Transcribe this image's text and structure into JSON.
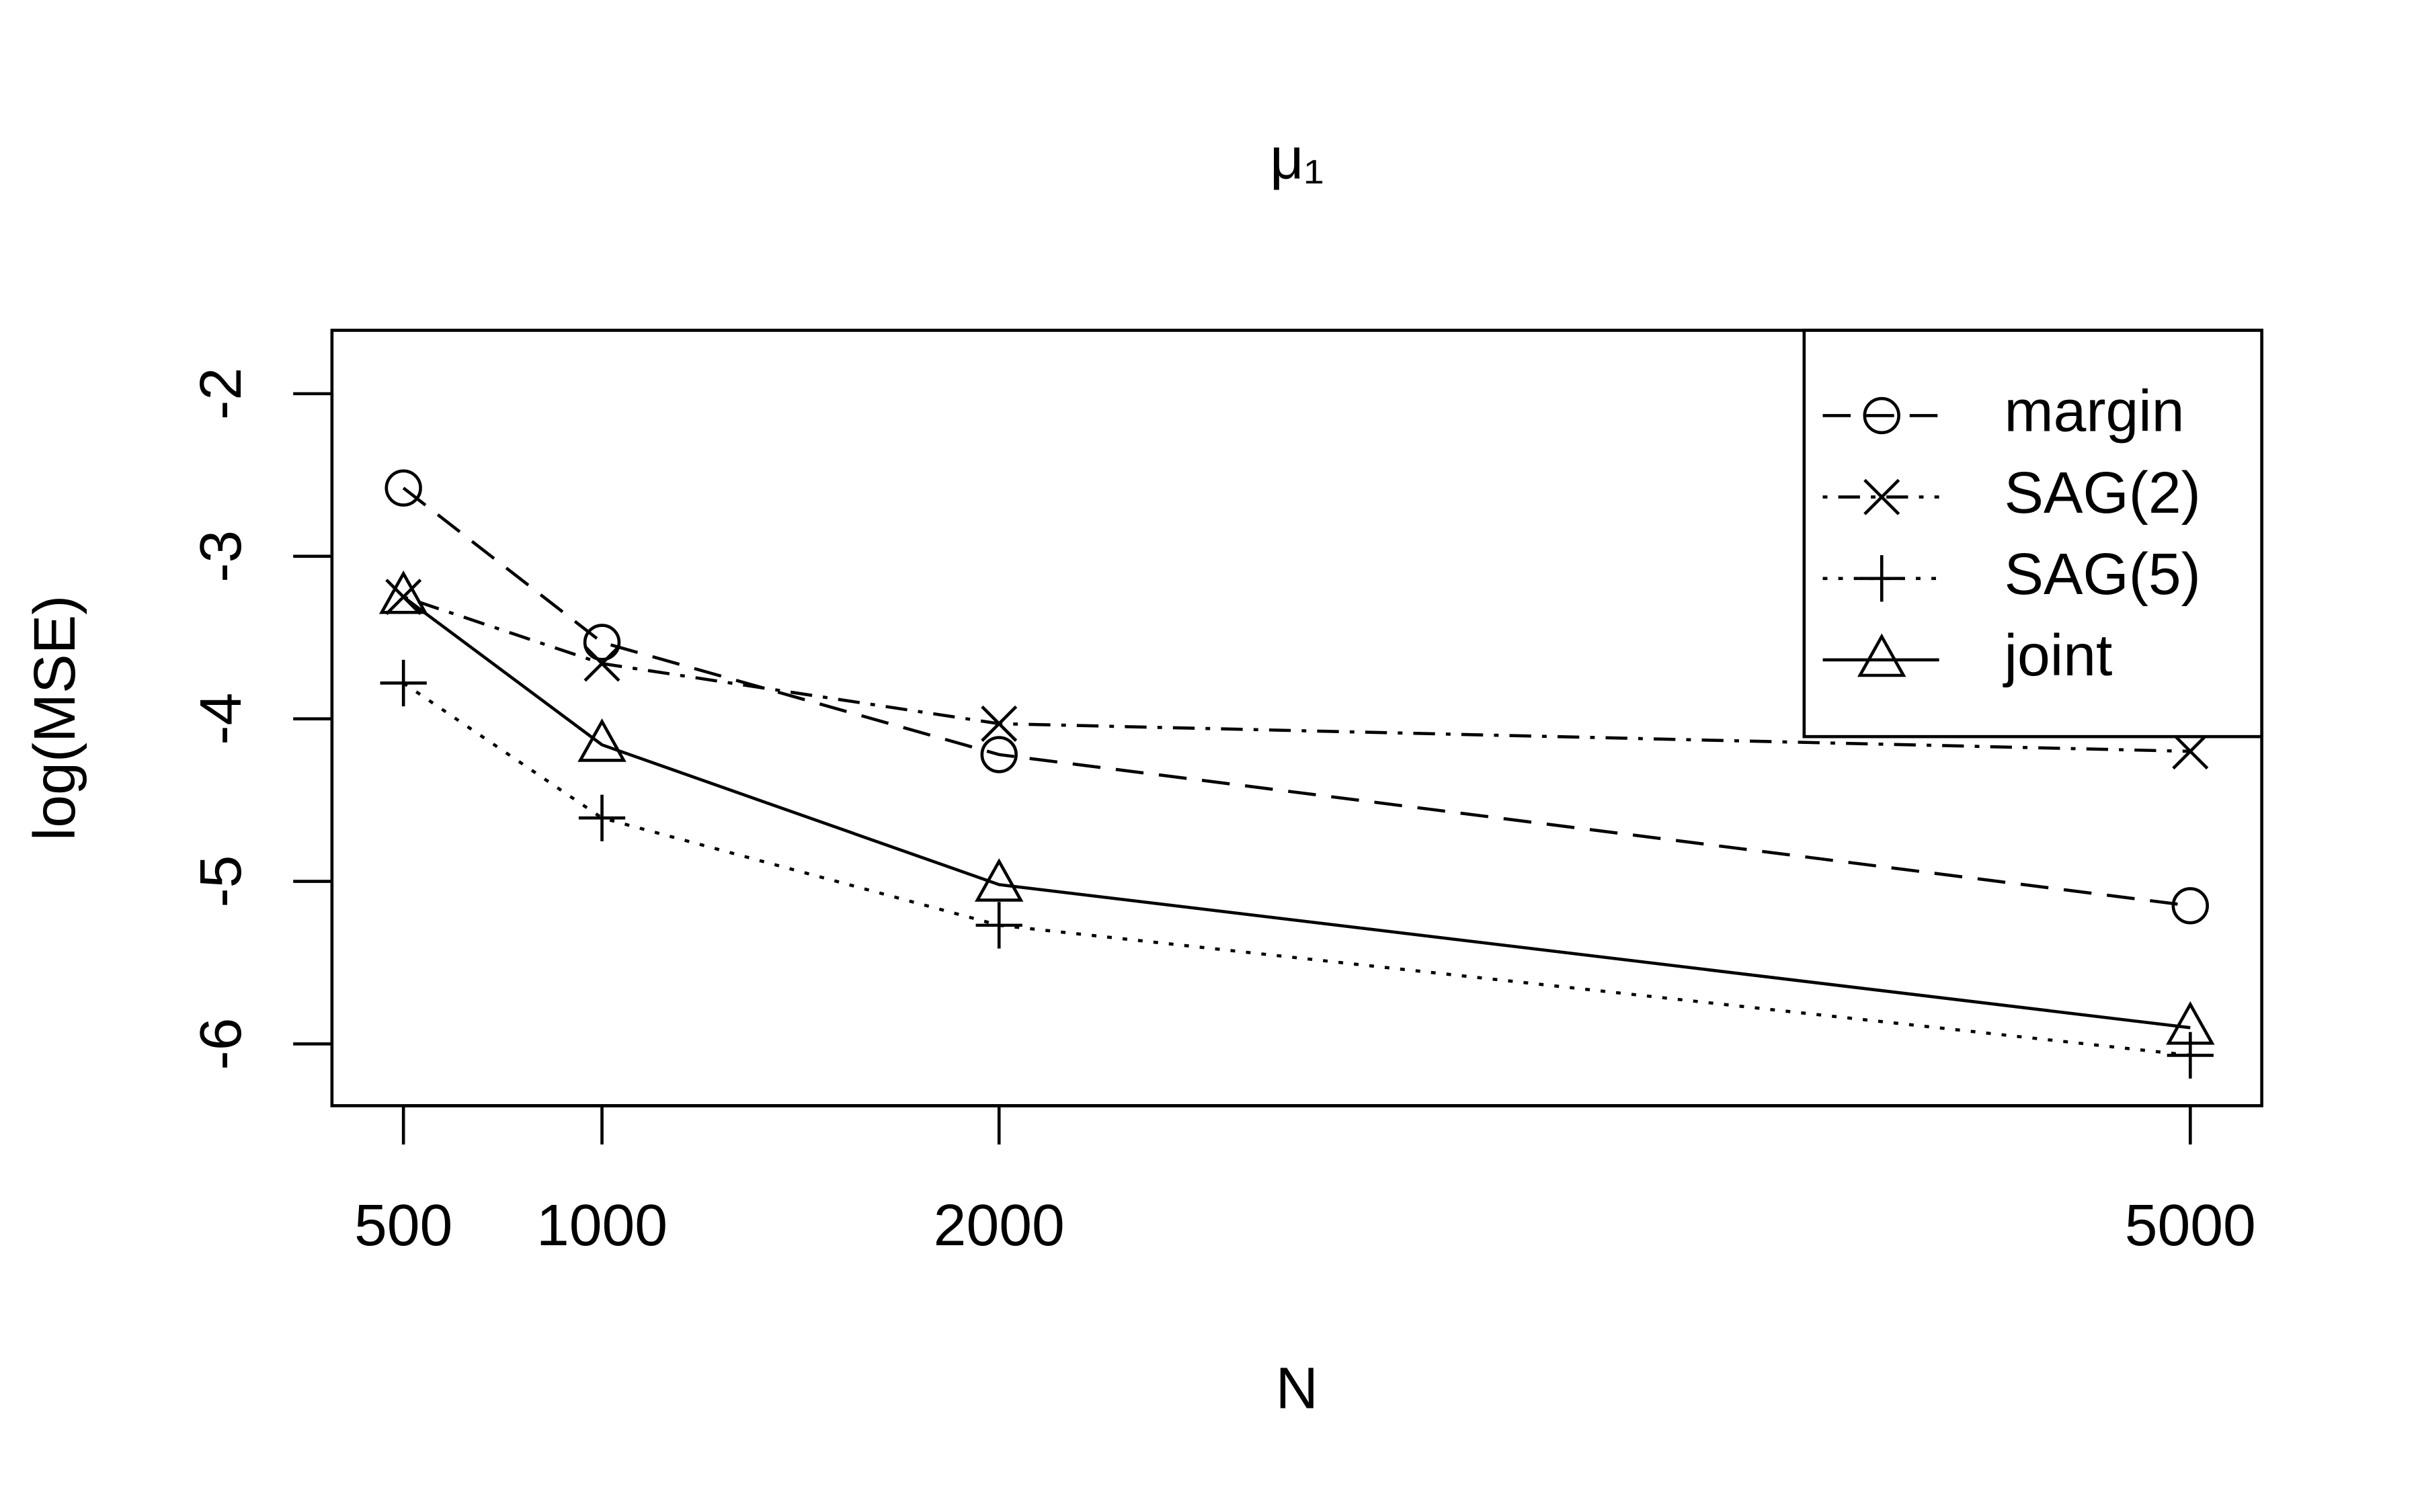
{
  "chart_data": {
    "type": "line",
    "title": "μ₁",
    "x_label": "N",
    "y_label": "log(MSE)",
    "x": [
      500,
      1000,
      2000,
      5000
    ],
    "series": [
      {
        "name": "margin",
        "color": "#000000",
        "dash": "dashed",
        "marker": "circle",
        "values": [
          -2.58,
          -3.53,
          -4.22,
          -5.15
        ]
      },
      {
        "name": "SAG(2)",
        "color": "#000000",
        "dash": "dashdot",
        "marker": "x",
        "values": [
          -3.25,
          -3.66,
          -4.03,
          -4.2
        ]
      },
      {
        "name": "SAG(5)",
        "color": "#000000",
        "dash": "dotted",
        "marker": "plus",
        "values": [
          -3.78,
          -4.61,
          -5.27,
          -6.07
        ]
      },
      {
        "name": "joint",
        "color": "#000000",
        "dash": "solid",
        "marker": "triangle",
        "values": [
          -3.25,
          -4.16,
          -5.02,
          -5.9
        ]
      }
    ],
    "xlim": [
      320,
      5180
    ],
    "xticks": [
      500,
      1000,
      2000,
      5000
    ],
    "ylim": [
      -6.38,
      -1.61
    ],
    "yticks": [
      -6,
      -5,
      -4,
      -3,
      -2
    ],
    "legend": "top-right"
  }
}
